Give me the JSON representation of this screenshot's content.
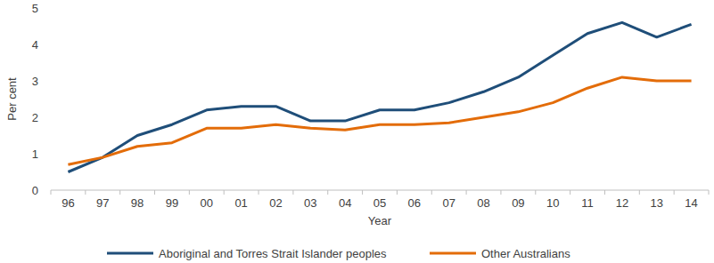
{
  "chart_data": {
    "type": "line",
    "x_label": "Year",
    "y_label": "Per cent",
    "categories": [
      "96",
      "97",
      "98",
      "99",
      "00",
      "01",
      "02",
      "03",
      "04",
      "05",
      "06",
      "07",
      "08",
      "09",
      "10",
      "11",
      "12",
      "13",
      "14"
    ],
    "series": [
      {
        "name": "Aboriginal and Torres Strait Islander peoples",
        "color": "#1f4e79",
        "values": [
          0.5,
          0.9,
          1.5,
          1.8,
          2.2,
          2.3,
          2.3,
          1.9,
          1.9,
          2.2,
          2.2,
          2.4,
          2.7,
          3.1,
          3.7,
          4.3,
          4.6,
          4.2,
          4.55
        ]
      },
      {
        "name": "Other Australians",
        "color": "#e36c09",
        "values": [
          0.7,
          0.9,
          1.2,
          1.3,
          1.7,
          1.7,
          1.8,
          1.7,
          1.65,
          1.8,
          1.8,
          1.85,
          2.0,
          2.15,
          2.4,
          2.8,
          3.1,
          3.0,
          3.0
        ]
      }
    ],
    "ylim": [
      0,
      5
    ],
    "yticks": [
      0,
      1,
      2,
      3,
      4,
      5
    ],
    "grid": false,
    "legend": "bottom"
  }
}
